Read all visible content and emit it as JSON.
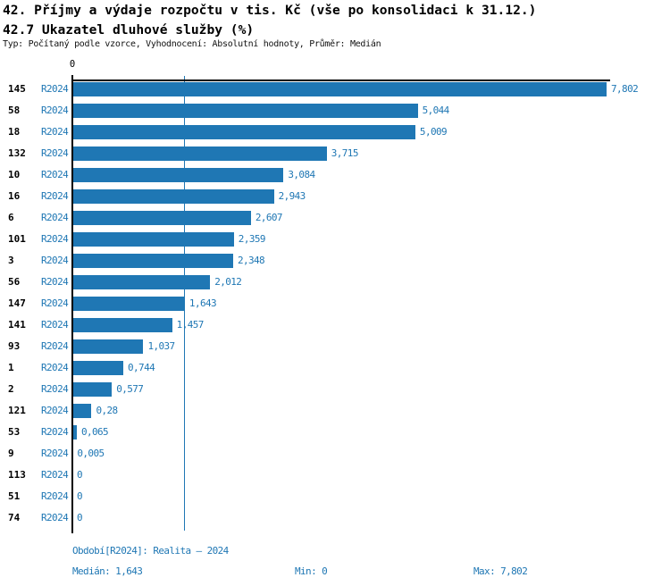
{
  "header": {
    "title_line1": "42. Příjmy a výdaje rozpočtu v tis. Kč (vše po konsolidaci k 31.12.)",
    "title_line2": "42.7 Ukazatel dluhové služby (%)",
    "meta_line": "Typ: Počítaný podle vzorce, Vyhodnocení: Absolutní hodnoty, Průměr: Medián"
  },
  "chart_data": {
    "type": "bar",
    "orientation": "horizontal",
    "title": "42.7 Ukazatel dluhové služby (%)",
    "series_name": "R2024",
    "axis_zero_label": "0",
    "xlim": [
      0,
      7.802
    ],
    "grid": false,
    "legend_position": "none",
    "median": 1.643,
    "categories": [
      "145",
      "58",
      "18",
      "132",
      "10",
      "16",
      "6",
      "101",
      "3",
      "56",
      "147",
      "141",
      "93",
      "1",
      "2",
      "121",
      "53",
      "9",
      "113",
      "51",
      "74"
    ],
    "values": [
      7.802,
      5.044,
      5.009,
      3.715,
      3.084,
      2.943,
      2.607,
      2.359,
      2.348,
      2.012,
      1.643,
      1.457,
      1.037,
      0.744,
      0.577,
      0.28,
      0.065,
      0.005,
      0,
      0,
      0
    ],
    "value_labels": [
      "7,802",
      "5,044",
      "5,009",
      "3,715",
      "3,084",
      "2,943",
      "2,607",
      "2,359",
      "2,348",
      "2,012",
      "1,643",
      "1,457",
      "1,037",
      "0,744",
      "0,577",
      "0,28",
      "0,065",
      "0,005",
      "0",
      "0",
      "0"
    ]
  },
  "footer": {
    "period_line": "Období[R2024]: Realita – 2024",
    "median_label": "Medián: 1,643",
    "min_label": "Min: 0",
    "max_label": "Max: 7,802"
  },
  "colors": {
    "bar": "#1f77b4",
    "blue_text": "#1f77b4",
    "median_line": "#1f77b4",
    "axis": "#000000",
    "background": "#ffffff"
  }
}
